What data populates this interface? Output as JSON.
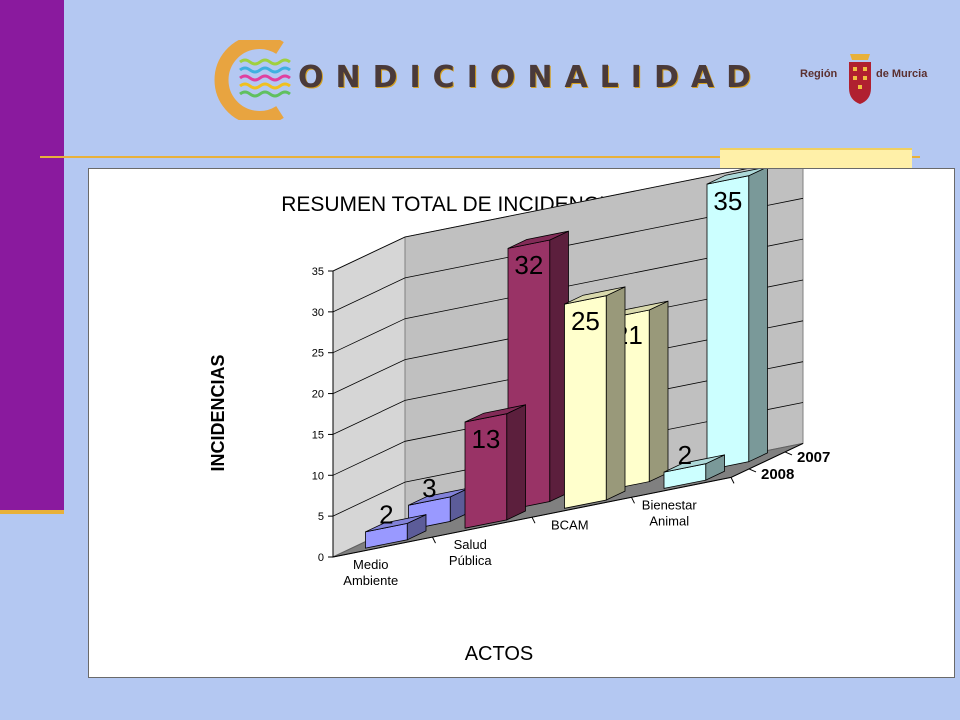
{
  "header": {
    "logo_text": "ONDICIONALIDAD",
    "region_left": "Región",
    "region_right": "de Murcia"
  },
  "chart_data": {
    "type": "bar",
    "title": "RESUMEN TOTAL DE INCIDENCIAS POR ACTOS",
    "xlabel": "ACTOS",
    "ylabel": "INCIDENCIAS",
    "categories": [
      "Medio Ambiente",
      "Salud Pública",
      "BCAM",
      "Bienestar Animal"
    ],
    "series": [
      {
        "name": "2007",
        "values": [
          3,
          32,
          21,
          35
        ]
      },
      {
        "name": "2008",
        "values": [
          2,
          13,
          25,
          2
        ]
      }
    ],
    "ylim": [
      0,
      35
    ],
    "yticks": [
      0,
      5,
      10,
      15,
      20,
      25,
      30,
      35
    ],
    "grid": true,
    "legend": "right-depth-axis",
    "colors": {
      "Medio Ambiente": "#9999ff",
      "Salud Pública": "#993366",
      "BCAM": "#ffffcc",
      "Bienestar Animal": "#ccffff"
    }
  }
}
